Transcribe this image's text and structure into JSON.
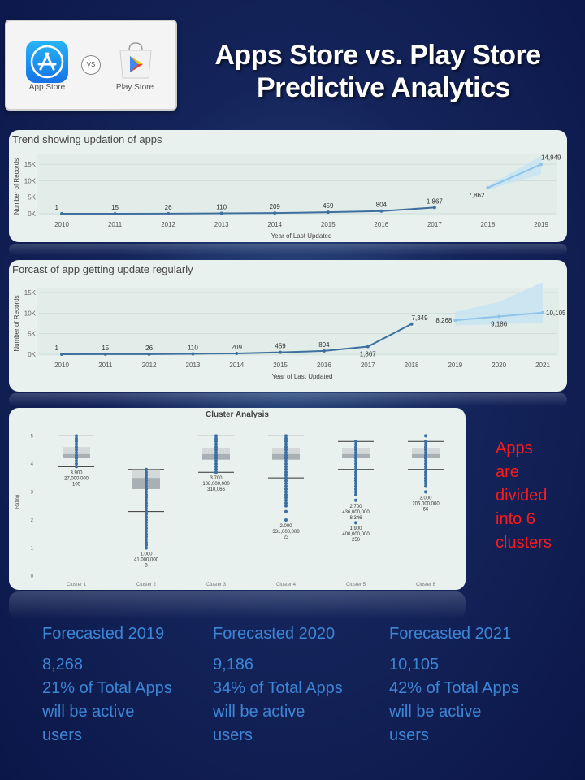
{
  "header": {
    "title_line1": "Apps Store vs. Play Store",
    "title_line2": "Predictive Analytics",
    "app_store_label": "App Store",
    "vs_label": "VS",
    "play_store_label": "Play Store"
  },
  "colors": {
    "line": "#3f6f9f",
    "forecast": "#8fc4ea",
    "band": "#c5e2f2",
    "box_dark": "#a9b0b4",
    "box_light": "#d4d8d9",
    "note": "#ff1a1a",
    "forecast_text": "#3d86d6"
  },
  "chart_data": [
    {
      "type": "line",
      "title": "Trend showing updation of apps",
      "xlabel": "Year of Last Updated",
      "ylabel": "Number of Records",
      "x": [
        2010,
        2011,
        2012,
        2013,
        2014,
        2015,
        2016,
        2017,
        2018,
        2019
      ],
      "yticks": [
        "0K",
        "5K",
        "10K",
        "15K"
      ],
      "ylim": [
        0,
        16500
      ],
      "actual": {
        "x": [
          2010,
          2011,
          2012,
          2013,
          2014,
          2015,
          2016,
          2017
        ],
        "values": [
          1,
          15,
          26,
          110,
          209,
          459,
          804,
          1867
        ],
        "labels": [
          "1",
          "15",
          "26",
          "110",
          "209",
          "459",
          "804",
          "1,867"
        ]
      },
      "forecast": {
        "x": [
          2018,
          2019
        ],
        "values": [
          7862,
          14949
        ],
        "labels": [
          "7,862",
          "14,949"
        ],
        "band_low": [
          7300,
          12000
        ],
        "band_high": [
          8400,
          17500
        ]
      }
    },
    {
      "type": "line",
      "title": "Forcast of app getting update regularly",
      "xlabel": "Year of Last Updated",
      "ylabel": "Number of Records",
      "x": [
        2010,
        2011,
        2012,
        2013,
        2014,
        2015,
        2016,
        2017,
        2018,
        2019,
        2020,
        2021
      ],
      "yticks": [
        "0K",
        "5K",
        "10K",
        "15K"
      ],
      "ylim": [
        0,
        15000
      ],
      "actual": {
        "x": [
          2010,
          2011,
          2012,
          2013,
          2014,
          2015,
          2016,
          2017,
          2018
        ],
        "values": [
          1,
          15,
          26,
          110,
          209,
          459,
          804,
          1867,
          7349
        ],
        "labels": [
          "1",
          "15",
          "26",
          "110",
          "209",
          "459",
          "804",
          "1,867",
          "7,349"
        ]
      },
      "forecast": {
        "x": [
          2019,
          2020,
          2021
        ],
        "values": [
          8268,
          9186,
          10105
        ],
        "labels": [
          "8,268",
          "9,186",
          "10,105"
        ],
        "band_low": [
          7000,
          7300,
          7600
        ],
        "band_high": [
          10300,
          12700,
          17500
        ]
      }
    },
    {
      "type": "box",
      "title": "Cluster Analysis",
      "ylabel": "Rating",
      "yticks": [
        "0",
        "1",
        "2",
        "3",
        "4",
        "5"
      ],
      "ylim": [
        0,
        5.3
      ],
      "clusters": [
        {
          "name": "Cluster 1",
          "whisker_low": 3.9,
          "q1": 4.2,
          "median": 4.35,
          "q3": 4.6,
          "whisker_high": 5.0,
          "outliers": [],
          "annotations": [
            "3.900",
            "27,000,000",
            "105"
          ],
          "annot_rating": 3.9
        },
        {
          "name": "Cluster 2",
          "whisker_low": 2.3,
          "q1": 3.1,
          "median": 3.5,
          "q3": 3.8,
          "whisker_high": 3.8,
          "outliers": [
            1.0,
            1.1,
            1.2,
            1.3,
            1.4,
            1.5,
            1.6,
            1.7,
            1.8,
            1.9,
            2.0,
            2.1,
            2.2
          ],
          "annotations": [
            "1.000",
            "41,000,000",
            "3"
          ],
          "annot_rating": 1.0
        },
        {
          "name": "Cluster 3",
          "whisker_low": 3.7,
          "q1": 4.15,
          "median": 4.35,
          "q3": 4.55,
          "whisker_high": 5.0,
          "outliers": [],
          "annotations": [
            "3.700",
            "108,000,000",
            "310,066"
          ],
          "annot_rating": 3.7
        },
        {
          "name": "Cluster 4",
          "whisker_low": 3.5,
          "q1": 4.15,
          "median": 4.35,
          "q3": 4.55,
          "whisker_high": 5.0,
          "outliers": [
            2.0,
            2.3,
            2.5,
            2.6,
            2.7,
            2.8,
            2.9,
            3.0,
            3.1,
            3.2,
            3.3,
            3.4
          ],
          "annotations": [
            "2.000",
            "331,000,000",
            "23"
          ],
          "annot_rating": 2.0
        },
        {
          "name": "Cluster 5",
          "whisker_low": 3.8,
          "q1": 4.2,
          "median": 4.35,
          "q3": 4.55,
          "whisker_high": 4.8,
          "outliers": [
            1.9,
            2.7,
            2.9,
            3.0,
            3.1,
            3.2,
            3.3,
            3.4,
            3.5,
            3.6,
            3.7
          ],
          "annotations": [
            "2.700",
            "436,000,000",
            "8,346",
            "1.900",
            "400,000,000",
            "250"
          ],
          "annot_rating": 2.7
        },
        {
          "name": "Cluster 6",
          "whisker_low": 3.8,
          "q1": 4.2,
          "median": 4.35,
          "q3": 4.55,
          "whisker_high": 4.8,
          "outliers": [
            3.0,
            3.2,
            3.3,
            3.4,
            3.5,
            3.6,
            3.7,
            5.0
          ],
          "annotations": [
            "3.000",
            "206,000,000",
            "66"
          ],
          "annot_rating": 3.0
        }
      ]
    }
  ],
  "side_note": [
    "Apps",
    "are",
    "divided",
    "into 6",
    "clusters"
  ],
  "forecasts": [
    {
      "title": "Forecasted 2019",
      "value": "8,268",
      "pct": "21% of Total Apps",
      "line3": "will be active",
      "line4": "users"
    },
    {
      "title": "Forecasted 2020",
      "value": "9,186",
      "pct": "34% of Total Apps",
      "line3": "will be active",
      "line4": "users"
    },
    {
      "title": "Forecasted 2021",
      "value": "10,105",
      "pct": "42% of Total Apps",
      "line3": "will be active",
      "line4": "users"
    }
  ]
}
